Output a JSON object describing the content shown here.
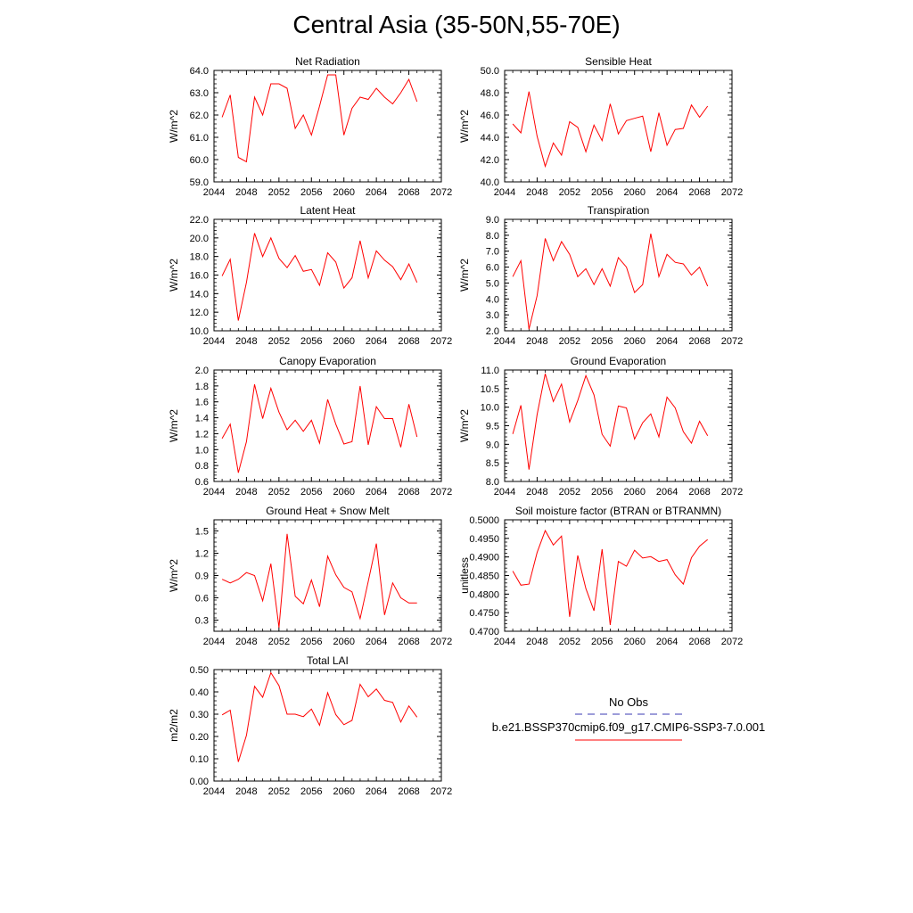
{
  "figure": {
    "title": "Central Asia (35-50N,55-70E)",
    "legend": {
      "obs_label": "No Obs",
      "model_label": "b.e21.BSSP370cmip6.f09_g17.CMIP6-SSP3-7.0.001",
      "obs_color": "#3b3bb3",
      "model_color": "#ff0000"
    }
  },
  "chart_data": [
    {
      "type": "line",
      "title": "Net Radiation",
      "ylabel": "W/m^2",
      "xlabel": "",
      "xlim": [
        2044,
        2072
      ],
      "ylim": [
        59.0,
        64.0
      ],
      "xticks": [
        "2044",
        "2048",
        "2052",
        "2056",
        "2060",
        "2064",
        "2068",
        "2072"
      ],
      "yticks": [
        "59.0",
        "60.0",
        "61.0",
        "62.0",
        "63.0",
        "64.0"
      ],
      "x": [
        2045,
        2046,
        2047,
        2048,
        2049,
        2050,
        2051,
        2052,
        2053,
        2054,
        2055,
        2056,
        2057,
        2058,
        2059,
        2060,
        2061,
        2062,
        2063,
        2064,
        2065,
        2066,
        2067,
        2068,
        2069
      ],
      "series": [
        {
          "values": [
            61.9,
            62.9,
            60.1,
            59.9,
            62.8,
            62.0,
            63.4,
            63.4,
            63.2,
            61.4,
            62.0,
            61.1,
            62.4,
            63.8,
            63.8,
            61.1,
            62.3,
            62.8,
            62.7,
            63.2,
            62.8,
            62.5,
            63.0,
            63.6,
            62.6
          ],
          "color": "#ff0000"
        }
      ]
    },
    {
      "type": "line",
      "title": "Sensible Heat",
      "ylabel": "W/m^2",
      "xlabel": "",
      "xlim": [
        2044,
        2072
      ],
      "ylim": [
        40.0,
        50.0
      ],
      "xticks": [
        "2044",
        "2048",
        "2052",
        "2056",
        "2060",
        "2064",
        "2068",
        "2072"
      ],
      "yticks": [
        "40.0",
        "42.0",
        "44.0",
        "46.0",
        "48.0",
        "50.0"
      ],
      "x": [
        2045,
        2046,
        2047,
        2048,
        2049,
        2050,
        2051,
        2052,
        2053,
        2054,
        2055,
        2056,
        2057,
        2058,
        2059,
        2060,
        2061,
        2062,
        2063,
        2064,
        2065,
        2066,
        2067,
        2068,
        2069
      ],
      "series": [
        {
          "values": [
            45.2,
            44.4,
            48.1,
            44.1,
            41.4,
            43.5,
            42.4,
            45.4,
            44.9,
            42.7,
            45.1,
            43.7,
            47.0,
            44.3,
            45.5,
            45.7,
            45.9,
            42.7,
            46.2,
            43.3,
            44.7,
            44.8,
            46.9,
            45.8,
            46.8
          ],
          "color": "#ff0000"
        }
      ]
    },
    {
      "type": "line",
      "title": "Latent Heat",
      "ylabel": "W/m^2",
      "xlabel": "",
      "xlim": [
        2044,
        2072
      ],
      "ylim": [
        10.0,
        22.0
      ],
      "xticks": [
        "2044",
        "2048",
        "2052",
        "2056",
        "2060",
        "2064",
        "2068",
        "2072"
      ],
      "yticks": [
        "10.0",
        "12.0",
        "14.0",
        "16.0",
        "18.0",
        "20.0",
        "22.0"
      ],
      "x": [
        2045,
        2046,
        2047,
        2048,
        2049,
        2050,
        2051,
        2052,
        2053,
        2054,
        2055,
        2056,
        2057,
        2058,
        2059,
        2060,
        2061,
        2062,
        2063,
        2064,
        2065,
        2066,
        2067,
        2068,
        2069
      ],
      "series": [
        {
          "values": [
            15.9,
            17.7,
            11.1,
            15.2,
            20.5,
            18.0,
            20.0,
            17.8,
            16.8,
            18.1,
            16.4,
            16.6,
            14.9,
            18.4,
            17.4,
            14.6,
            15.7,
            19.7,
            15.7,
            18.6,
            17.6,
            16.9,
            15.5,
            17.2,
            15.2
          ],
          "color": "#ff0000"
        }
      ]
    },
    {
      "type": "line",
      "title": "Transpiration",
      "ylabel": "W/m^2",
      "xlabel": "",
      "xlim": [
        2044,
        2072
      ],
      "ylim": [
        2.0,
        9.0
      ],
      "xticks": [
        "2044",
        "2048",
        "2052",
        "2056",
        "2060",
        "2064",
        "2068",
        "2072"
      ],
      "yticks": [
        "2.0",
        "3.0",
        "4.0",
        "5.0",
        "6.0",
        "7.0",
        "8.0",
        "9.0"
      ],
      "x": [
        2045,
        2046,
        2047,
        2048,
        2049,
        2050,
        2051,
        2052,
        2053,
        2054,
        2055,
        2056,
        2057,
        2058,
        2059,
        2060,
        2061,
        2062,
        2063,
        2064,
        2065,
        2066,
        2067,
        2068,
        2069
      ],
      "series": [
        {
          "values": [
            5.4,
            6.4,
            2.1,
            4.2,
            7.8,
            6.4,
            7.6,
            6.8,
            5.4,
            5.9,
            4.9,
            5.9,
            4.8,
            6.6,
            6.0,
            4.4,
            4.9,
            8.1,
            5.4,
            6.8,
            6.3,
            6.2,
            5.5,
            6.0,
            4.8
          ],
          "color": "#ff0000"
        }
      ]
    },
    {
      "type": "line",
      "title": "Canopy Evaporation",
      "ylabel": "W/m^2",
      "xlabel": "",
      "xlim": [
        2044,
        2072
      ],
      "ylim": [
        0.6,
        2.0
      ],
      "xticks": [
        "2044",
        "2048",
        "2052",
        "2056",
        "2060",
        "2064",
        "2068",
        "2072"
      ],
      "yticks": [
        "0.6",
        "0.8",
        "1.0",
        "1.2",
        "1.4",
        "1.6",
        "1.8",
        "2.0"
      ],
      "x": [
        2045,
        2046,
        2047,
        2048,
        2049,
        2050,
        2051,
        2052,
        2053,
        2054,
        2055,
        2056,
        2057,
        2058,
        2059,
        2060,
        2061,
        2062,
        2063,
        2064,
        2065,
        2066,
        2067,
        2068,
        2069
      ],
      "series": [
        {
          "values": [
            1.14,
            1.32,
            0.71,
            1.1,
            1.82,
            1.39,
            1.77,
            1.47,
            1.25,
            1.37,
            1.23,
            1.37,
            1.08,
            1.63,
            1.32,
            1.07,
            1.1,
            1.8,
            1.06,
            1.54,
            1.39,
            1.39,
            1.03,
            1.57,
            1.16
          ],
          "color": "#ff0000"
        }
      ]
    },
    {
      "type": "line",
      "title": "Ground Evaporation",
      "ylabel": "W/m^2",
      "xlabel": "",
      "xlim": [
        2044,
        2072
      ],
      "ylim": [
        8.0,
        11.0
      ],
      "xticks": [
        "2044",
        "2048",
        "2052",
        "2056",
        "2060",
        "2064",
        "2068",
        "2072"
      ],
      "yticks": [
        "8.0",
        "8.5",
        "9.0",
        "9.5",
        "10.0",
        "10.5",
        "11.0"
      ],
      "x": [
        2045,
        2046,
        2047,
        2048,
        2049,
        2050,
        2051,
        2052,
        2053,
        2054,
        2055,
        2056,
        2057,
        2058,
        2059,
        2060,
        2061,
        2062,
        2063,
        2064,
        2065,
        2066,
        2067,
        2068,
        2069
      ],
      "series": [
        {
          "values": [
            9.28,
            10.05,
            8.32,
            9.8,
            10.9,
            10.15,
            10.62,
            9.6,
            10.18,
            10.85,
            10.33,
            9.27,
            8.95,
            10.03,
            9.98,
            9.14,
            9.58,
            9.82,
            9.2,
            10.27,
            9.98,
            9.34,
            9.03,
            9.62,
            9.23
          ],
          "color": "#ff0000"
        }
      ]
    },
    {
      "type": "line",
      "title": "Ground Heat + Snow Melt",
      "ylabel": "W/m^2",
      "xlabel": "",
      "xlim": [
        2044,
        2072
      ],
      "ylim": [
        0.15,
        1.65
      ],
      "xticks": [
        "2044",
        "2048",
        "2052",
        "2056",
        "2060",
        "2064",
        "2068",
        "2072"
      ],
      "yticks": [
        "0.3",
        "0.6",
        "0.9",
        "1.2",
        "1.5"
      ],
      "ytick_values": [
        0.3,
        0.6,
        0.9,
        1.2,
        1.5
      ],
      "x": [
        2045,
        2046,
        2047,
        2048,
        2049,
        2050,
        2051,
        2052,
        2053,
        2054,
        2055,
        2056,
        2057,
        2058,
        2059,
        2060,
        2061,
        2062,
        2063,
        2064,
        2065,
        2066,
        2067,
        2068,
        2069
      ],
      "series": [
        {
          "values": [
            0.85,
            0.8,
            0.85,
            0.94,
            0.9,
            0.56,
            1.06,
            0.2,
            1.46,
            0.62,
            0.52,
            0.84,
            0.48,
            1.16,
            0.91,
            0.74,
            0.68,
            0.32,
            0.82,
            1.33,
            0.37,
            0.8,
            0.6,
            0.53,
            0.53
          ],
          "color": "#ff0000"
        }
      ]
    },
    {
      "type": "line",
      "title": "Soil moisture factor (BTRAN or BTRANMN)",
      "ylabel": "unitless",
      "xlabel": "",
      "xlim": [
        2044,
        2072
      ],
      "ylim": [
        0.47,
        0.5
      ],
      "xticks": [
        "2044",
        "2048",
        "2052",
        "2056",
        "2060",
        "2064",
        "2068",
        "2072"
      ],
      "yticks": [
        "0.4700",
        "0.4750",
        "0.4800",
        "0.4850",
        "0.4900",
        "0.4950",
        "0.5000"
      ],
      "x": [
        2045,
        2046,
        2047,
        2048,
        2049,
        2050,
        2051,
        2052,
        2053,
        2054,
        2055,
        2056,
        2057,
        2058,
        2059,
        2060,
        2061,
        2062,
        2063,
        2064,
        2065,
        2066,
        2067,
        2068,
        2069
      ],
      "series": [
        {
          "values": [
            0.4862,
            0.4824,
            0.4827,
            0.4912,
            0.4971,
            0.4932,
            0.4956,
            0.4739,
            0.4904,
            0.4815,
            0.4755,
            0.4921,
            0.4717,
            0.4888,
            0.4875,
            0.4918,
            0.4897,
            0.4901,
            0.4888,
            0.4893,
            0.4852,
            0.4827,
            0.4898,
            0.4929,
            0.4947
          ],
          "color": "#ff0000"
        }
      ]
    },
    {
      "type": "line",
      "title": "Total LAI",
      "ylabel": "m2/m2",
      "xlabel": "",
      "xlim": [
        2044,
        2072
      ],
      "ylim": [
        0.0,
        0.5
      ],
      "xticks": [
        "2044",
        "2048",
        "2052",
        "2056",
        "2060",
        "2064",
        "2068",
        "2072"
      ],
      "yticks": [
        "0.00",
        "0.10",
        "0.20",
        "0.30",
        "0.40",
        "0.50"
      ],
      "x": [
        2045,
        2046,
        2047,
        2048,
        2049,
        2050,
        2051,
        2052,
        2053,
        2054,
        2055,
        2056,
        2057,
        2058,
        2059,
        2060,
        2061,
        2062,
        2063,
        2064,
        2065,
        2066,
        2067,
        2068,
        2069
      ],
      "series": [
        {
          "values": [
            0.297,
            0.318,
            0.086,
            0.205,
            0.425,
            0.376,
            0.486,
            0.428,
            0.3,
            0.3,
            0.289,
            0.323,
            0.25,
            0.396,
            0.298,
            0.253,
            0.272,
            0.434,
            0.378,
            0.413,
            0.362,
            0.353,
            0.265,
            0.337,
            0.287
          ],
          "color": "#ff0000"
        }
      ]
    }
  ]
}
